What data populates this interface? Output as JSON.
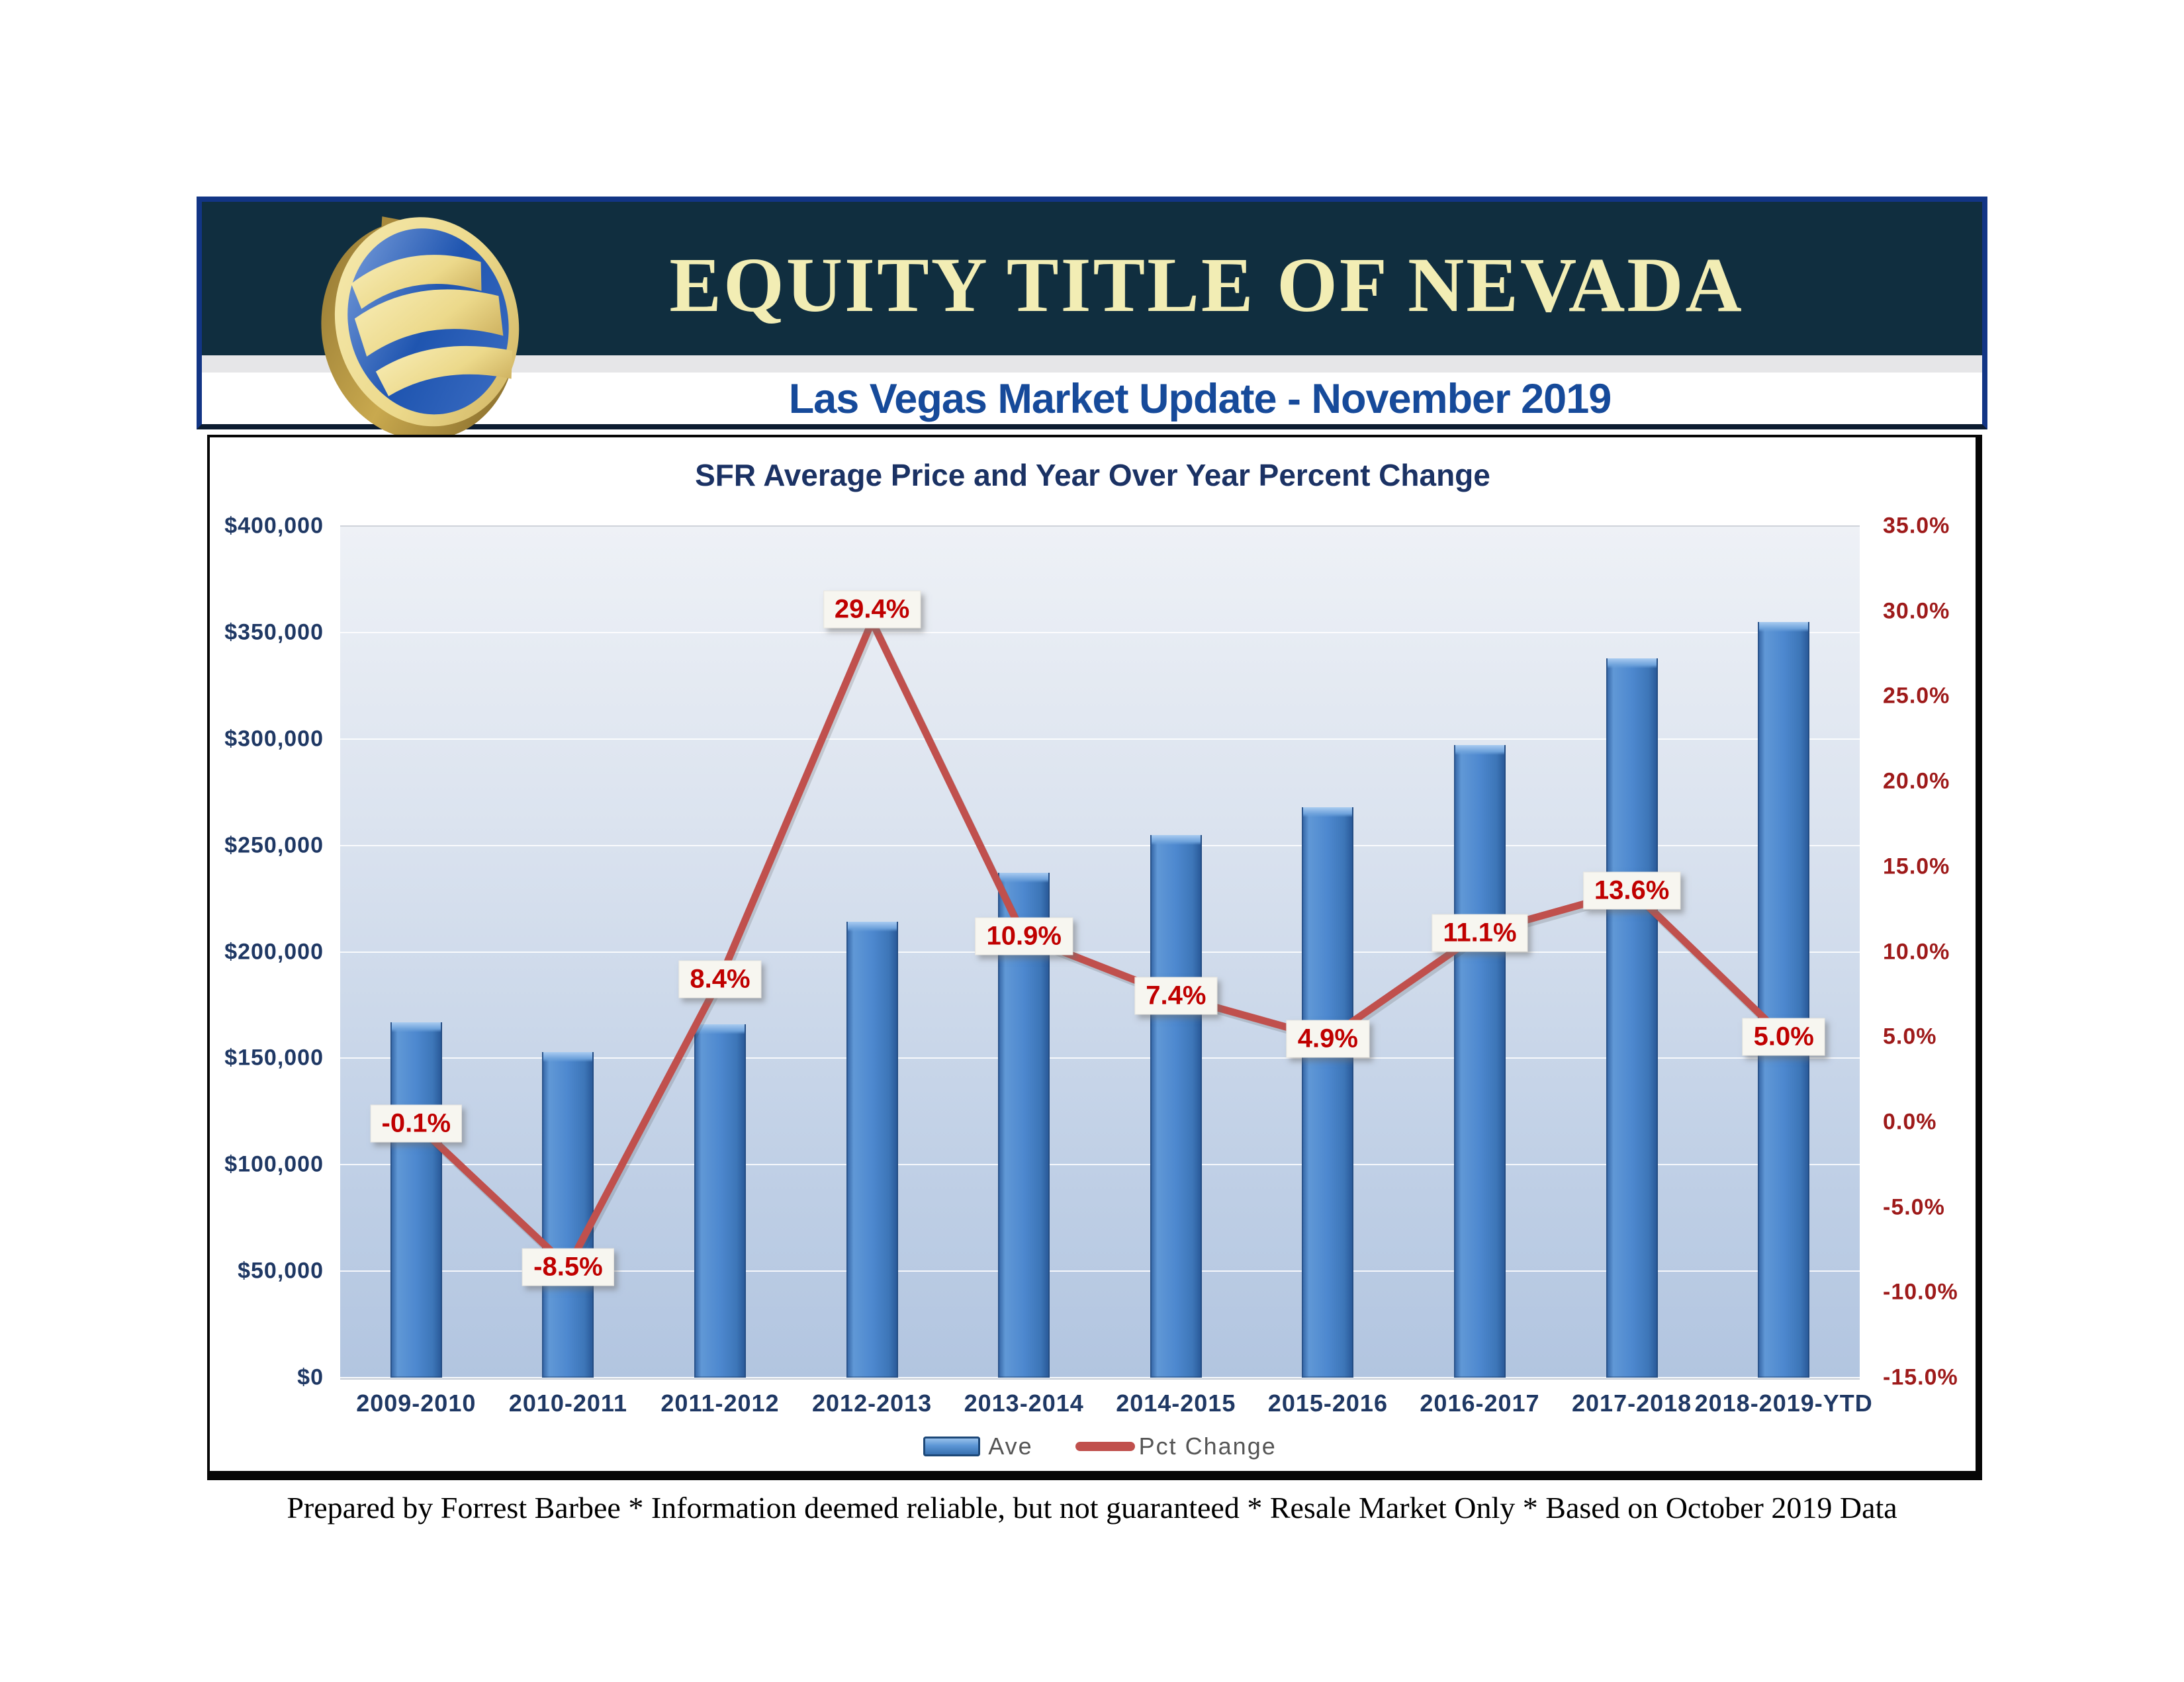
{
  "header": {
    "title": "EQUITY TITLE OF NEVADA",
    "subtitle": "Las Vegas Market Update - November 2019"
  },
  "chart_data": {
    "type": "bar",
    "combo": "bar + line, dual axis",
    "title": "SFR Average Price and Year Over Year Percent Change",
    "categories": [
      "2009-2010",
      "2010-2011",
      "2011-2012",
      "2012-2013",
      "2013-2014",
      "2014-2015",
      "2015-2016",
      "2016-2017",
      "2017-2018",
      "2018-2019-YTD"
    ],
    "series": [
      {
        "name": "Ave",
        "type": "bar",
        "axis": "left",
        "values": [
          167000,
          153000,
          166000,
          214000,
          237000,
          255000,
          268000,
          297000,
          338000,
          355000
        ]
      },
      {
        "name": "Pct Change",
        "type": "line",
        "axis": "right",
        "values": [
          -0.1,
          -8.5,
          8.4,
          29.4,
          10.9,
          7.4,
          4.9,
          11.1,
          13.6,
          5.0
        ],
        "point_labels": [
          "-0.1%",
          "-8.5%",
          "8.4%",
          "29.4%",
          "10.9%",
          "7.4%",
          "4.9%",
          "11.1%",
          "13.6%",
          "5.0%"
        ]
      }
    ],
    "left_axis": {
      "min": 0,
      "max": 400000,
      "step": 50000,
      "tick_labels": [
        "$400,000",
        "$350,000",
        "$300,000",
        "$250,000",
        "$200,000",
        "$150,000",
        "$100,000",
        "$50,000",
        "$0"
      ]
    },
    "right_axis": {
      "min": -15,
      "max": 35,
      "step": 5,
      "tick_labels": [
        "35.0%",
        "30.0%",
        "25.0%",
        "20.0%",
        "15.0%",
        "10.0%",
        "5.0%",
        "0.0%",
        "-5.0%",
        "-10.0%",
        "-15.0%"
      ]
    },
    "legend": {
      "position": "bottom",
      "entries": [
        "Ave",
        "Pct Change"
      ]
    },
    "grid": true
  },
  "colors": {
    "bar_blue": "#4d88cf",
    "line_red": "#c0504d",
    "label_red": "#c00000",
    "axis_navy": "#1f3864",
    "axis_red": "#9e1a1a",
    "header_band": "#102e3f",
    "header_frame": "#123585",
    "header_title_text": "#f2edb4",
    "subtitle_text": "#164a9a"
  },
  "footer": {
    "text": "Prepared by Forrest Barbee * Information deemed reliable, but not guaranteed * Resale Market Only * Based on October 2019 Data"
  }
}
